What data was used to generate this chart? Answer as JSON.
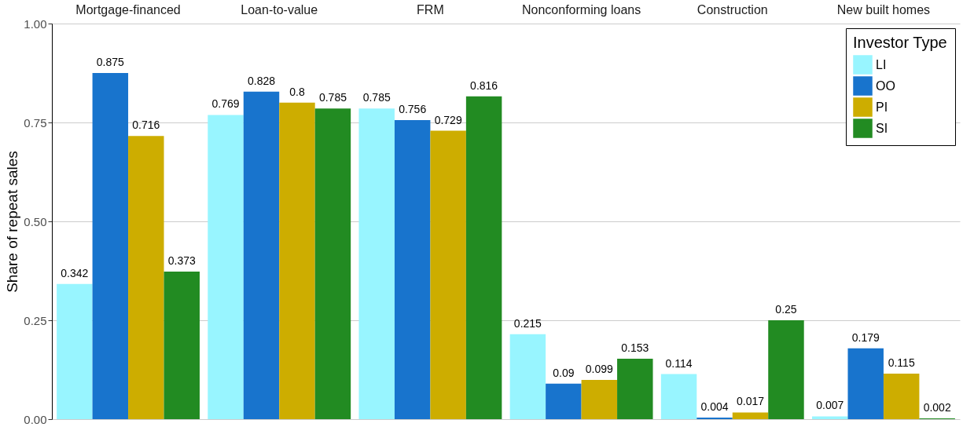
{
  "chart_data": {
    "type": "bar",
    "ylabel": "Share of repeat sales",
    "categories": [
      "Mortgage-financed",
      "Loan-to-value",
      "FRM",
      "Nonconforming loans",
      "Construction",
      "New built homes"
    ],
    "series": [
      {
        "name": "LI",
        "color": "#98f5ff",
        "values": [
          0.342,
          0.769,
          0.785,
          0.215,
          0.114,
          0.007
        ]
      },
      {
        "name": "OO",
        "color": "#1874cd",
        "values": [
          0.875,
          0.828,
          0.756,
          0.09,
          0.004,
          0.179
        ]
      },
      {
        "name": "PI",
        "color": "#cdad00",
        "values": [
          0.716,
          0.8,
          0.729,
          0.099,
          0.017,
          0.115
        ]
      },
      {
        "name": "SI",
        "color": "#228b22",
        "values": [
          0.373,
          0.785,
          0.816,
          0.153,
          0.25,
          0.002
        ]
      }
    ],
    "ylim": [
      0,
      1
    ],
    "yticks": [
      {
        "value": 0,
        "label": "0.00"
      },
      {
        "value": 0.25,
        "label": "0.25"
      },
      {
        "value": 0.5,
        "label": "0.50"
      },
      {
        "value": 0.75,
        "label": "0.75"
      },
      {
        "value": 1,
        "label": "1.00"
      }
    ],
    "grid": "y",
    "data_labels": true,
    "legend": "top right",
    "legend_title": "Investor Type"
  }
}
